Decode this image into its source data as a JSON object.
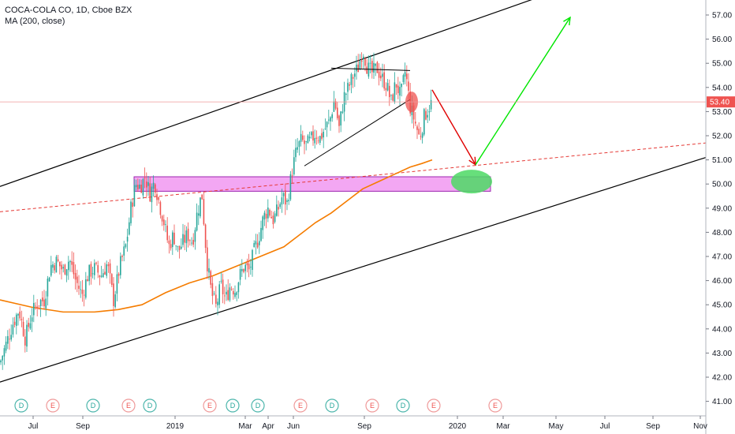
{
  "legend": {
    "title": "COCA-COLA CO, 1D, Cboe BZX",
    "indicator": "MA (200, close)"
  },
  "colors": {
    "up": "#26a69a",
    "down": "#ef5350",
    "ma": "#f57c00",
    "channel": "#000000",
    "support_dashed": "#e53935",
    "zone": "#ee82ee",
    "green_arrow": "#00e600",
    "red_arrow": "#e00000",
    "last_price_bg": "#ef5350",
    "dividend": "#4db6ac",
    "earnings": "#ef9a9a"
  },
  "chart_data": {
    "type": "candlestick",
    "symbol": "COCA-COLA CO",
    "interval": "1D",
    "exchange": "Cboe BZX",
    "last_price": 53.4,
    "y_ticks": [
      "41.00",
      "42.00",
      "43.00",
      "44.00",
      "45.00",
      "46.00",
      "47.00",
      "48.00",
      "49.00",
      "50.00",
      "51.00",
      "52.00",
      "53.00",
      "54.00",
      "55.00",
      "56.00",
      "57.00"
    ],
    "x_ticks": [
      "Jul",
      "Sep",
      "2019",
      "Mar",
      "Apr",
      "Jun",
      "Sep",
      "2020",
      "Mar",
      "May",
      "Jul",
      "Sep",
      "Nov"
    ],
    "event_markers": [
      "D",
      "E",
      "D",
      "E",
      "D",
      "E",
      "D",
      "D",
      "E",
      "D",
      "E",
      "D",
      "E",
      "E"
    ],
    "close_path": [
      [
        0,
        42.6
      ],
      [
        8,
        43.4
      ],
      [
        16,
        44.2
      ],
      [
        24,
        44.8
      ],
      [
        32,
        43.6
      ],
      [
        40,
        44.6
      ],
      [
        48,
        45.1
      ],
      [
        56,
        45.2
      ],
      [
        64,
        46.6
      ],
      [
        72,
        46.8
      ],
      [
        80,
        46.4
      ],
      [
        88,
        46.9
      ],
      [
        96,
        46.0
      ],
      [
        104,
        45.4
      ],
      [
        112,
        46.3
      ],
      [
        120,
        46.5
      ],
      [
        128,
        46.2
      ],
      [
        136,
        46.7
      ],
      [
        144,
        45.2
      ],
      [
        152,
        46.6
      ],
      [
        160,
        47.5
      ],
      [
        166,
        49.0
      ],
      [
        172,
        50.0
      ],
      [
        178,
        49.9
      ],
      [
        184,
        50.3
      ],
      [
        190,
        49.6
      ],
      [
        196,
        50.1
      ],
      [
        202,
        49.2
      ],
      [
        208,
        48.4
      ],
      [
        214,
        47.4
      ],
      [
        220,
        47.9
      ],
      [
        226,
        47.2
      ],
      [
        232,
        47.6
      ],
      [
        238,
        47.9
      ],
      [
        244,
        47.6
      ],
      [
        250,
        48.8
      ],
      [
        256,
        49.6
      ],
      [
        262,
        46.9
      ],
      [
        268,
        45.5
      ],
      [
        274,
        44.9
      ],
      [
        280,
        45.8
      ],
      [
        286,
        45.2
      ],
      [
        292,
        45.8
      ],
      [
        298,
        45.6
      ],
      [
        304,
        46.2
      ],
      [
        310,
        46.6
      ],
      [
        316,
        46.4
      ],
      [
        322,
        47.2
      ],
      [
        328,
        47.8
      ],
      [
        334,
        48.6
      ],
      [
        340,
        49.0
      ],
      [
        346,
        48.5
      ],
      [
        352,
        48.9
      ],
      [
        358,
        49.5
      ],
      [
        364,
        49.2
      ],
      [
        370,
        50.5
      ],
      [
        376,
        51.4
      ],
      [
        382,
        51.8
      ],
      [
        388,
        51.6
      ],
      [
        394,
        51.8
      ],
      [
        400,
        52.1
      ],
      [
        406,
        51.9
      ],
      [
        412,
        52.3
      ],
      [
        418,
        52.6
      ],
      [
        424,
        53.5
      ],
      [
        430,
        52.3
      ],
      [
        436,
        53.6
      ],
      [
        442,
        54.0
      ],
      [
        448,
        54.5
      ],
      [
        454,
        54.8
      ],
      [
        460,
        55.6
      ],
      [
        466,
        54.8
      ],
      [
        472,
        54.6
      ],
      [
        478,
        54.8
      ],
      [
        484,
        54.4
      ],
      [
        490,
        54.1
      ],
      [
        496,
        53.4
      ],
      [
        502,
        54.2
      ],
      [
        508,
        53.6
      ],
      [
        514,
        54.7
      ],
      [
        520,
        53.2
      ],
      [
        526,
        52.6
      ],
      [
        532,
        51.9
      ],
      [
        538,
        52.8
      ],
      [
        544,
        53.2
      ],
      [
        548,
        53.4
      ]
    ],
    "ma200_path": [
      [
        0,
        45.2
      ],
      [
        40,
        44.9
      ],
      [
        80,
        44.7
      ],
      [
        120,
        44.7
      ],
      [
        150,
        44.8
      ],
      [
        180,
        45.0
      ],
      [
        210,
        45.5
      ],
      [
        240,
        45.9
      ],
      [
        270,
        46.2
      ],
      [
        300,
        46.6
      ],
      [
        330,
        47.0
      ],
      [
        360,
        47.4
      ],
      [
        380,
        47.9
      ],
      [
        400,
        48.4
      ],
      [
        420,
        48.8
      ],
      [
        440,
        49.3
      ],
      [
        460,
        49.8
      ],
      [
        480,
        50.1
      ],
      [
        500,
        50.4
      ],
      [
        520,
        50.7
      ],
      [
        535,
        50.85
      ],
      [
        548,
        51.0
      ]
    ],
    "annotations": {
      "resistance_zone": {
        "x_from": 170,
        "x_to": 622,
        "y_low": 49.7,
        "y_high": 50.3
      },
      "channel_upper": [
        [
          0,
          49.9
        ],
        [
          706,
          58.0
        ]
      ],
      "channel_lower": [
        [
          0,
          41.8
        ],
        [
          895,
          51.1
        ]
      ],
      "dashed_support": [
        [
          0,
          48.85
        ],
        [
          895,
          51.7
        ]
      ],
      "wedge_upper": [
        [
          420,
          54.8
        ],
        [
          520,
          54.7
        ]
      ],
      "wedge_lower": [
        [
          386,
          50.75
        ],
        [
          520,
          53.5
        ]
      ],
      "red_arrow": [
        [
          548,
          53.9
        ],
        [
          603,
          50.8
        ]
      ],
      "green_arrow": [
        [
          603,
          50.8
        ],
        [
          723,
          56.9
        ]
      ],
      "target_ellipse": {
        "x": 598,
        "y": 50.1
      },
      "sell_circle": {
        "x": 522,
        "y": 53.4
      }
    }
  }
}
